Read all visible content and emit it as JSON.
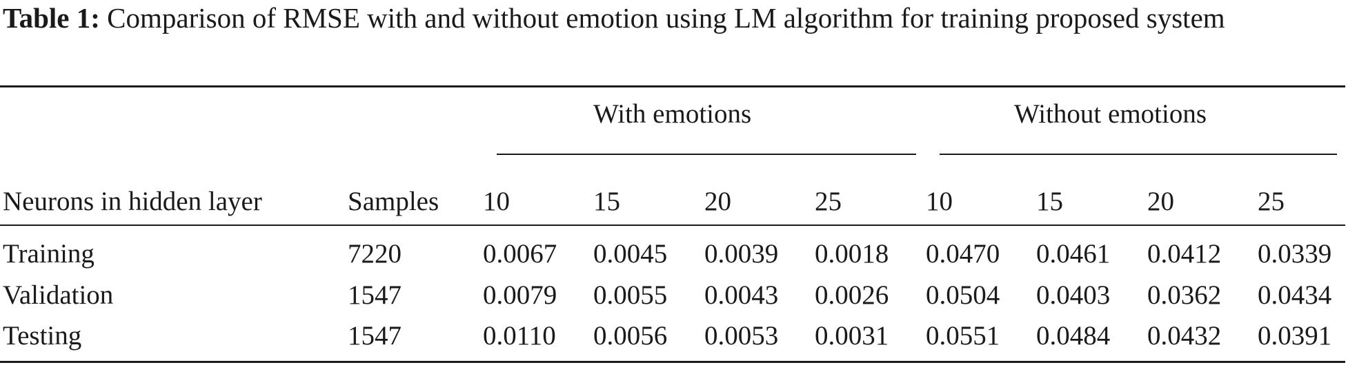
{
  "caption": {
    "label": "Table 1:",
    "text": "Comparison of RMSE with and without emotion using LM algorithm for training proposed system"
  },
  "table": {
    "group_headers": [
      "With emotions",
      "Without emotions"
    ],
    "header": [
      "Neurons in hidden layer",
      "Samples",
      "10",
      "15",
      "20",
      "25",
      "10",
      "15",
      "20",
      "25"
    ],
    "rows": [
      [
        "Training",
        "7220",
        "0.0067",
        "0.0045",
        "0.0039",
        "0.0018",
        "0.0470",
        "0.0461",
        "0.0412",
        "0.0339"
      ],
      [
        "Validation",
        "1547",
        "0.0079",
        "0.0055",
        "0.0043",
        "0.0026",
        "0.0504",
        "0.0403",
        "0.0362",
        "0.0434"
      ],
      [
        "Testing",
        "1547",
        "0.0110",
        "0.0056",
        "0.0053",
        "0.0031",
        "0.0551",
        "0.0484",
        "0.0432",
        "0.0391"
      ]
    ]
  }
}
